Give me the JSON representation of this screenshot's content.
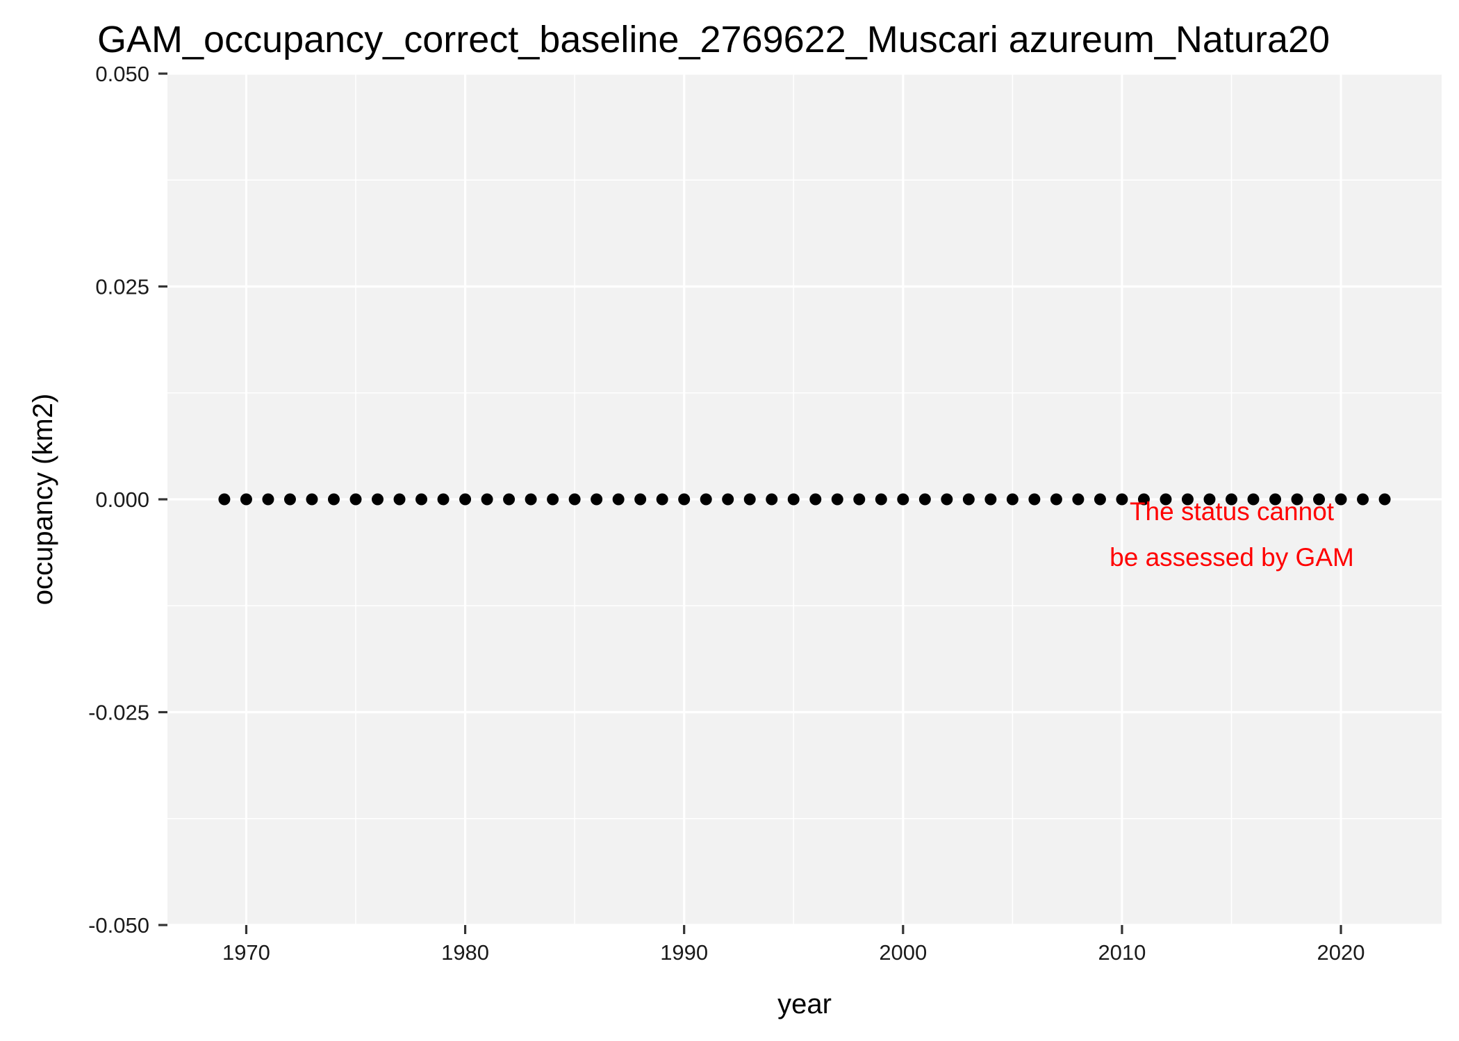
{
  "chart_data": {
    "type": "scatter",
    "title": "GAM_occupancy_correct_baseline_2769622_Muscari azureum_Natura20",
    "xlabel": "year",
    "ylabel": "occupancy (km2)",
    "xlim": [
      1966.4,
      2024.6
    ],
    "ylim": [
      -0.05,
      0.05
    ],
    "x_ticks": [
      1970,
      1980,
      1990,
      2000,
      2010,
      2020
    ],
    "x_tick_labels": [
      "1970",
      "1980",
      "1990",
      "2000",
      "2010",
      "2020"
    ],
    "y_ticks": [
      -0.05,
      -0.025,
      0,
      0.025,
      0.05
    ],
    "y_tick_labels": [
      "-0.050",
      "-0.025",
      "0.000",
      "0.025",
      "0.050"
    ],
    "grid": true,
    "series": [
      {
        "marker_color": "#000000",
        "x": [
          1969,
          1970,
          1971,
          1972,
          1973,
          1974,
          1975,
          1976,
          1977,
          1978,
          1979,
          1980,
          1981,
          1982,
          1983,
          1984,
          1985,
          1986,
          1987,
          1988,
          1989,
          1990,
          1991,
          1992,
          1993,
          1994,
          1995,
          1996,
          1997,
          1998,
          1999,
          2000,
          2001,
          2002,
          2003,
          2004,
          2005,
          2006,
          2007,
          2008,
          2009,
          2010,
          2011,
          2012,
          2013,
          2014,
          2015,
          2016,
          2017,
          2018,
          2019,
          2020,
          2021,
          2022
        ],
        "y": [
          0,
          0,
          0,
          0,
          0,
          0,
          0,
          0,
          0,
          0,
          0,
          0,
          0,
          0,
          0,
          0,
          0,
          0,
          0,
          0,
          0,
          0,
          0,
          0,
          0,
          0,
          0,
          0,
          0,
          0,
          0,
          0,
          0,
          0,
          0,
          0,
          0,
          0,
          0,
          0,
          0,
          0,
          0,
          0,
          0,
          0,
          0,
          0,
          0,
          0,
          0,
          0,
          0,
          0
        ]
      }
    ],
    "annotation": {
      "lines": [
        "The status cannot",
        "be assessed by GAM"
      ],
      "color": "#ff0000"
    },
    "panel_background": "#f2f2f2",
    "grid_color": "#ffffff"
  }
}
